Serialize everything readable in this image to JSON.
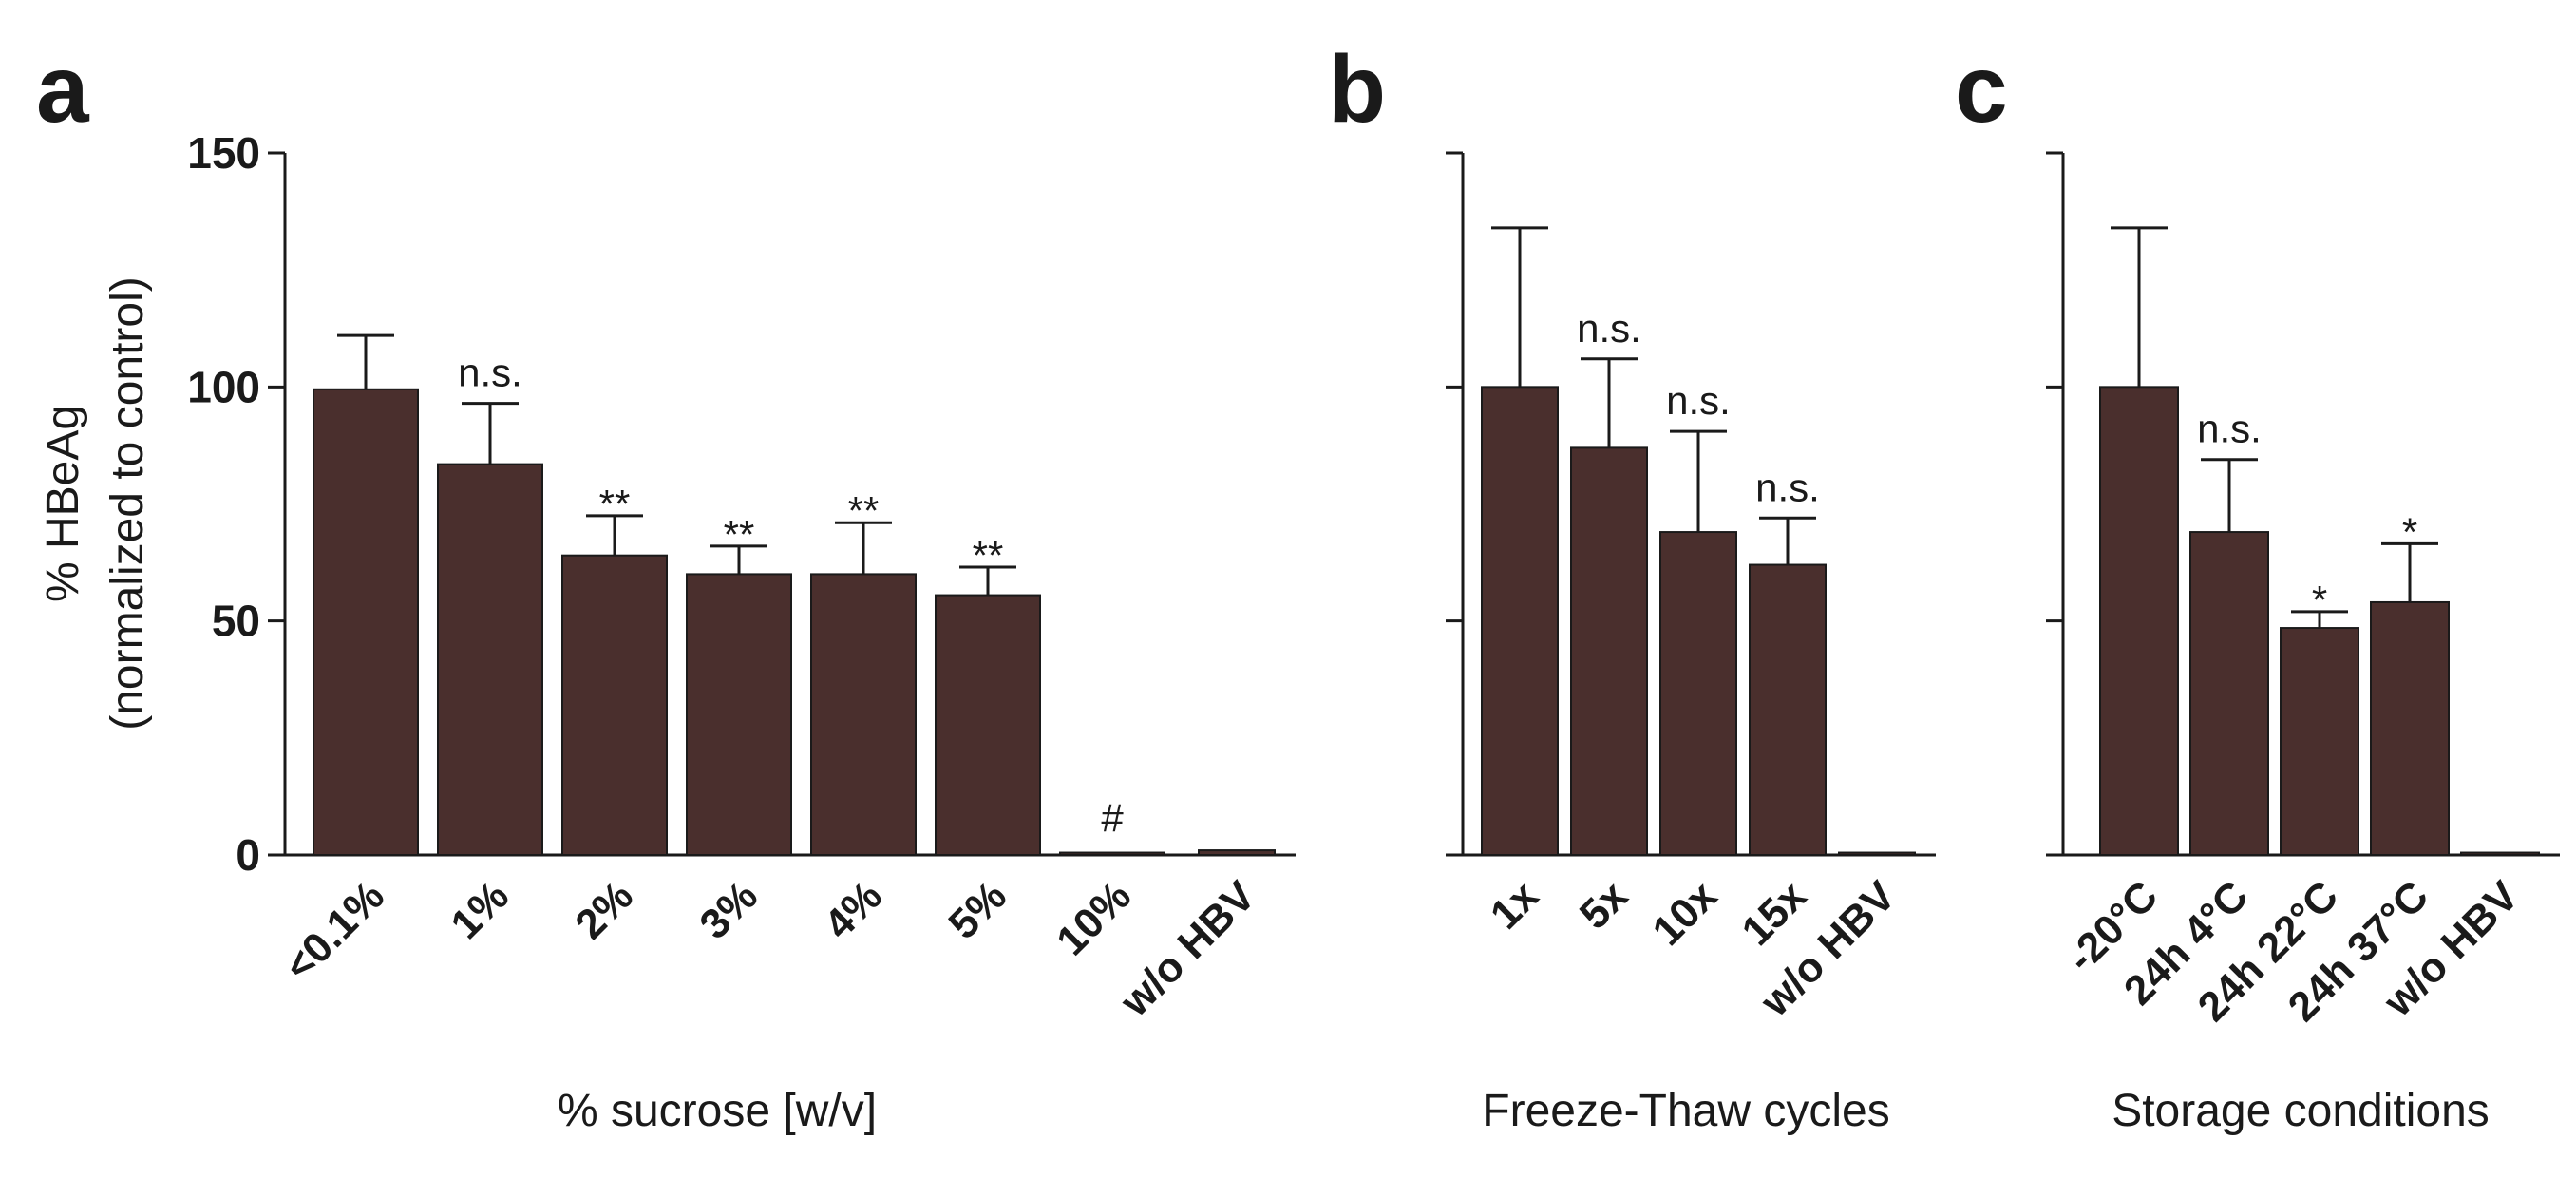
{
  "colors": {
    "bar": "#4a2f2d",
    "axis": "#1a1a1a"
  },
  "chart_data": [
    {
      "panel": "a",
      "type": "bar",
      "categories": [
        "<0.1%",
        "1%",
        "2%",
        "3%",
        "4%",
        "5%",
        "10%",
        "w/o HBV"
      ],
      "values": [
        99.5,
        83.5,
        64,
        60,
        60,
        55.5,
        0.5,
        1
      ],
      "errors": [
        11.5,
        13,
        8.5,
        6,
        11,
        6,
        0,
        0
      ],
      "annotations": [
        "",
        "n.s.",
        "**",
        "**",
        "**",
        "**",
        "#",
        ""
      ],
      "xlabel": "% sucrose [w/v]",
      "ylabel": "% HBeAg",
      "ylabel_sub": "(normalized to control)",
      "ylim": [
        0,
        150
      ],
      "yticks": [
        "0",
        "50",
        "100",
        "150"
      ],
      "show_ytick_labels": true
    },
    {
      "panel": "b",
      "type": "bar",
      "categories": [
        "1x",
        "5x",
        "10x",
        "15x",
        "w/o HBV"
      ],
      "values": [
        100,
        87,
        69,
        62,
        0.5
      ],
      "errors": [
        34,
        19,
        21.5,
        10,
        0
      ],
      "annotations": [
        "",
        "n.s.",
        "n.s.",
        "n.s.",
        ""
      ],
      "xlabel": "Freeze-Thaw cycles",
      "ylim": [
        0,
        150
      ],
      "yticks": [
        "0",
        "50",
        "100",
        "150"
      ],
      "show_ytick_labels": false
    },
    {
      "panel": "c",
      "type": "bar",
      "categories": [
        "-20°C",
        "24h 4°C",
        "24h 22°C",
        "24h 37°C",
        "w/o HBV"
      ],
      "values": [
        100,
        69,
        48.5,
        54,
        0.5
      ],
      "errors": [
        34,
        15.5,
        3.5,
        12.5,
        0
      ],
      "annotations": [
        "",
        "n.s.",
        "*",
        "*",
        ""
      ],
      "xlabel": "Storage conditions",
      "ylim": [
        0,
        150
      ],
      "yticks": [
        "0",
        "50",
        "100",
        "150"
      ],
      "show_ytick_labels": false
    }
  ]
}
